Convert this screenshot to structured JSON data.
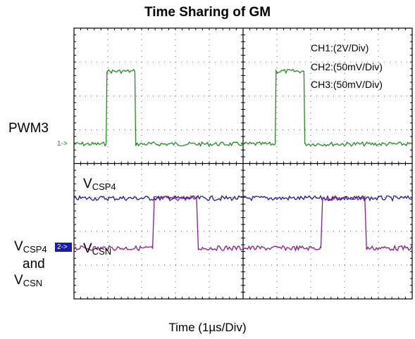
{
  "chart_data": {
    "type": "line",
    "title": "Time Sharing of GM",
    "xlabel": "Time (1µs/Div)",
    "ylabel": "",
    "grid": true,
    "x_divisions": 10,
    "y_divisions": 8,
    "x_unit": "µs",
    "channel_scales": [
      "CH1:(2V/Div)",
      "CH2:(50mV/Div)",
      "CH3:(50mV/Div)"
    ],
    "markers": [
      {
        "text": "1->",
        "channel": "CH1"
      },
      {
        "text": "2->",
        "channel": "CH2"
      }
    ],
    "signal_labels": {
      "pwm3": "PWM3",
      "vcsp4_main": "V",
      "vcsp4_sub": "CSP4",
      "vcsn_main": "V",
      "vcsn_sub": "CSN",
      "left_vcsp4_main": "V",
      "left_vcsp4_sub": "CSP4",
      "left_and": "and",
      "left_vcsn_main": "V",
      "left_vcsn_sub": "CSN"
    },
    "series": [
      {
        "color": "#228b22",
        "x": [
          0,
          1.9,
          1.95,
          3.6,
          3.65,
          11.9,
          11.95,
          13.6,
          13.65,
          20
        ],
        "y": [
          1.15,
          1.15,
          5.45,
          5.45,
          1.15,
          1.15,
          5.45,
          5.45,
          1.15,
          1.15
        ]
      },
      {
        "color": "#1a1a9c",
        "x": [
          0,
          20
        ],
        "y": [
          -2.05,
          -2.05
        ]
      },
      {
        "color": "#8a1a8a",
        "x": [
          0,
          4.65,
          4.75,
          7.25,
          7.35,
          14.6,
          14.7,
          17.2,
          17.3,
          20
        ],
        "y": [
          -5.0,
          -5.0,
          -2.05,
          -2.05,
          -5.0,
          -5.0,
          -2.05,
          -2.05,
          -5.0,
          -5.0
        ]
      }
    ]
  },
  "colors": {
    "ch1": "#228b22",
    "ch2": "#1a1a9c",
    "ch3": "#8a1a8a",
    "marker_bg": "#1a1aa8"
  }
}
